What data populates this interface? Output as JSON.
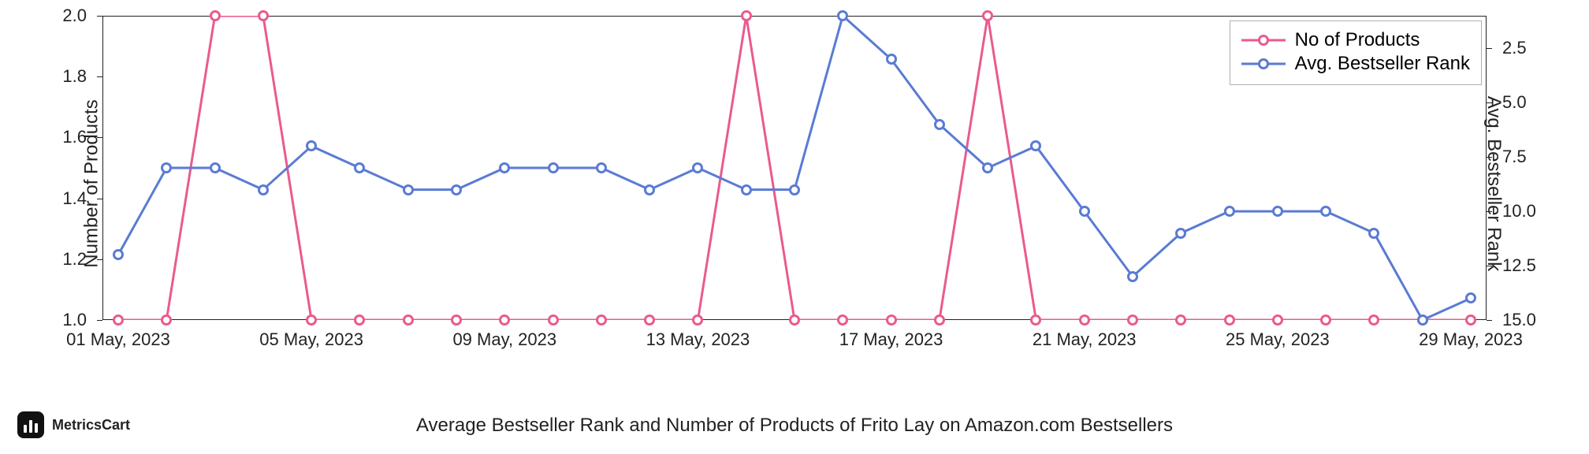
{
  "chart": {
    "type": "line-dual-axis",
    "background_color": "#ffffff",
    "line_width": 3,
    "marker_size": 14,
    "marker_fill": "#ffffff",
    "series": [
      {
        "key": "products",
        "label": "No of Products",
        "color": "#ea5a8f",
        "axis": "left",
        "values": [
          1,
          1,
          2,
          2,
          1,
          1,
          1,
          1,
          1,
          1,
          1,
          1,
          1,
          2,
          1,
          1,
          1,
          1,
          2,
          1,
          1,
          1,
          1,
          1,
          1,
          1,
          1,
          1,
          1
        ]
      },
      {
        "key": "avg_rank",
        "label": "Avg. Bestseller Rank",
        "color": "#5a7bd4",
        "axis": "right",
        "values": [
          12.0,
          8.0,
          8.0,
          9.0,
          7.0,
          8.0,
          9.0,
          9.0,
          8.0,
          8.0,
          8.0,
          9.0,
          8.0,
          9.0,
          9.0,
          1.0,
          3.0,
          6.0,
          8.0,
          7.0,
          10.0,
          13.0,
          11.0,
          10.0,
          10.0,
          10.0,
          11.0,
          15.0,
          14.0
        ]
      }
    ],
    "x": {
      "count": 29,
      "tick_indices": [
        0,
        4,
        8,
        12,
        16,
        20,
        24,
        28
      ],
      "tick_labels": [
        "01 May, 2023",
        "05 May, 2023",
        "09 May, 2023",
        "13 May, 2023",
        "17 May, 2023",
        "21 May, 2023",
        "25 May, 2023",
        "29 May, 2023"
      ],
      "label_fontsize": 22
    },
    "y_left": {
      "label": "Number of Products",
      "min": 1.0,
      "max": 2.0,
      "ticks": [
        1.0,
        1.2,
        1.4,
        1.6,
        1.8,
        2.0
      ],
      "tick_labels": [
        "1.0",
        "1.2",
        "1.4",
        "1.6",
        "1.8",
        "2.0"
      ],
      "label_fontsize": 24
    },
    "y_right": {
      "label": "Avg. Bestseller Rank",
      "min": 15.0,
      "max": 1.0,
      "ticks": [
        15.0,
        12.5,
        10.0,
        7.5,
        5.0,
        2.5
      ],
      "tick_labels": [
        "15.0",
        "12.5",
        "10.0",
        "7.5",
        "5.0",
        "2.5"
      ],
      "inverted": true,
      "label_fontsize": 24
    },
    "legend": {
      "position": "top-right",
      "border_color": "#b0b0b0",
      "fontsize": 24
    }
  },
  "caption": "Average Bestseller Rank and Number of Products of Frito Lay on Amazon.com Bestsellers",
  "brand": {
    "name": "MetricsCart",
    "logo_bg": "#111111",
    "logo_bar_color": "#ffffff"
  }
}
